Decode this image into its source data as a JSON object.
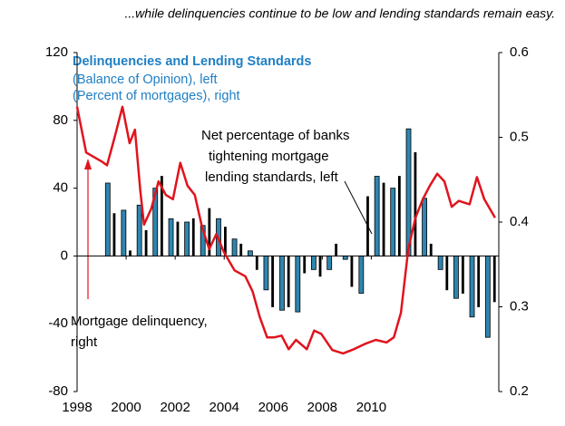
{
  "chart_data": {
    "type": "bar-line",
    "heading": "...while delinquencies continue to be low and lending standards remain easy.",
    "title": "Delinquencies and Lending Standards",
    "xlim": [
      1998,
      2015.2
    ],
    "xticks": [
      1998,
      2000,
      2002,
      2004,
      2006,
      2008,
      2010
    ],
    "ylim": [
      -80,
      120
    ],
    "yticks": [
      -80,
      -40,
      0,
      40,
      80,
      120
    ],
    "y2lim": [
      0.2,
      0.6
    ],
    "y2ticks": [
      0.2,
      0.3,
      0.4,
      0.5,
      0.6
    ],
    "series": [
      {
        "name": "(Balance of Opinion), left",
        "type": "bar",
        "color": "#2e86b0",
        "x": [
          1999.25,
          1999.57,
          1999.9,
          2000.22,
          2000.54,
          2000.87,
          2001.19,
          2001.51,
          2001.83,
          2002.16,
          2002.48,
          2002.8,
          2003.13,
          2003.45,
          2003.77,
          2004.1,
          2004.42,
          2004.74,
          2005.06,
          2005.39,
          2005.71,
          2006.03,
          2006.36,
          2006.68,
          2007.0,
          2007.33,
          2007.65,
          2007.97,
          2008.29,
          2008.62,
          2008.94,
          2009.26,
          2009.59,
          2009.91,
          2010.23,
          2010.56,
          2010.88,
          2011.2,
          2011.52,
          2011.85,
          2012.17,
          2012.49,
          2012.82,
          2013.14,
          2013.46,
          2013.79,
          2014.11,
          2014.43,
          2014.75,
          2015.08
        ],
        "values": [
          43,
          25,
          27,
          3,
          30,
          15,
          40,
          47,
          22,
          20,
          20,
          22,
          18,
          28,
          22,
          17,
          10,
          7,
          3,
          -8,
          -20,
          -30,
          -32,
          -30,
          -33,
          -10,
          -8,
          -12,
          -8,
          7,
          -2,
          -18,
          -22,
          35,
          47,
          43,
          40,
          47,
          75,
          61,
          34,
          7,
          -8,
          -20,
          -25,
          -22,
          -36,
          -30,
          -48,
          -27
        ]
      },
      {
        "name": "(Percent of mortgages), right",
        "type": "line",
        "axis": "y2",
        "color": "#e0141e",
        "x": [
          1998.0,
          1998.37,
          1999.03,
          1999.22,
          1999.55,
          1999.85,
          2000.14,
          2000.36,
          2000.58,
          2000.73,
          2001.03,
          2001.32,
          2001.62,
          2001.91,
          2002.21,
          2002.5,
          2002.8,
          2003.09,
          2003.39,
          2003.68,
          2003.98,
          2004.42,
          2004.86,
          2005.16,
          2005.45,
          2005.75,
          2006.04,
          2006.34,
          2006.63,
          2006.93,
          2007.37,
          2007.67,
          2007.96,
          2008.41,
          2008.85,
          2009.29,
          2009.73,
          2010.18,
          2010.62,
          2010.92,
          2011.21,
          2011.51,
          2011.8,
          2012.1,
          2012.39,
          2012.69,
          2012.98,
          2013.28,
          2013.57,
          2014.01,
          2014.31,
          2014.61,
          2015.05
        ],
        "values": [
          0.536,
          0.482,
          0.471,
          0.467,
          0.502,
          0.536,
          0.493,
          0.509,
          0.437,
          0.397,
          0.416,
          0.448,
          0.432,
          0.427,
          0.47,
          0.443,
          0.432,
          0.395,
          0.368,
          0.386,
          0.365,
          0.343,
          0.336,
          0.318,
          0.288,
          0.264,
          0.264,
          0.266,
          0.25,
          0.261,
          0.25,
          0.272,
          0.268,
          0.249,
          0.245,
          0.25,
          0.256,
          0.261,
          0.258,
          0.264,
          0.293,
          0.368,
          0.405,
          0.427,
          0.443,
          0.457,
          0.448,
          0.418,
          0.425,
          0.421,
          0.453,
          0.427,
          0.405
        ]
      }
    ],
    "annotations": [
      {
        "lines": [
          "Net percentage of banks",
          "tightening mortgage",
          "lending standards, left"
        ]
      },
      {
        "lines": [
          "Mortgage delinquency,",
          "right"
        ]
      }
    ]
  }
}
